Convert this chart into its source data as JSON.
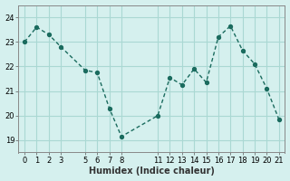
{
  "x": [
    0,
    1,
    2,
    3,
    5,
    6,
    7,
    8,
    11,
    12,
    13,
    14,
    15,
    16,
    17,
    18,
    19,
    20,
    21
  ],
  "y": [
    23.0,
    23.6,
    23.3,
    22.8,
    21.85,
    21.75,
    20.3,
    19.15,
    20.0,
    21.55,
    21.25,
    21.9,
    21.35,
    23.2,
    23.65,
    22.65,
    22.1,
    21.1,
    19.85
  ],
  "line_color": "#1a6b5e",
  "marker_color": "#1a6b5e",
  "bg_color": "#d5f0ee",
  "grid_color": "#aad8d3",
  "title": "",
  "xlabel": "Humidex (Indice chaleur)",
  "ylabel": "",
  "ylim": [
    18.5,
    24.5
  ],
  "xlim": [
    -0.5,
    21.5
  ],
  "yticks": [
    19,
    20,
    21,
    22,
    23,
    24
  ],
  "xticks": [
    0,
    1,
    2,
    3,
    5,
    6,
    7,
    8,
    11,
    12,
    13,
    14,
    15,
    16,
    17,
    18,
    19,
    20,
    21
  ]
}
